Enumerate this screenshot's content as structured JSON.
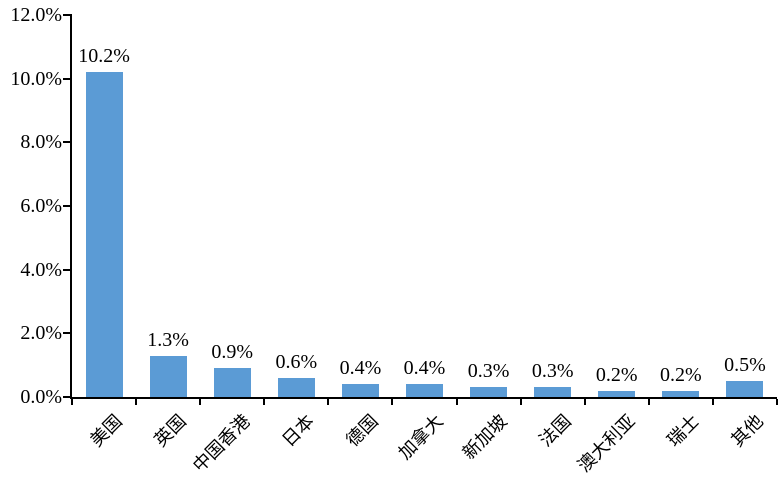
{
  "chart_data": {
    "type": "bar",
    "title": "",
    "xlabel": "",
    "ylabel": "",
    "categories": [
      "美国",
      "英国",
      "中国香港",
      "日本",
      "德国",
      "加拿大",
      "新加坡",
      "法国",
      "澳大利亚",
      "瑞士",
      "其他"
    ],
    "values": [
      10.2,
      1.3,
      0.9,
      0.6,
      0.4,
      0.4,
      0.3,
      0.3,
      0.2,
      0.2,
      0.5
    ],
    "data_labels": [
      "10.2%",
      "1.3%",
      "0.9%",
      "0.6%",
      "0.4%",
      "0.4%",
      "0.3%",
      "0.3%",
      "0.2%",
      "0.2%",
      "0.5%"
    ],
    "ylim": [
      0,
      12
    ],
    "y_tick_step": 2,
    "y_ticks": [
      "0.0%",
      "2.0%",
      "4.0%",
      "6.0%",
      "8.0%",
      "10.0%",
      "12.0%"
    ],
    "grid": false,
    "legend": "none",
    "bar_color": "#5B9BD5",
    "axis_color": "#000000",
    "text_color": "#000000",
    "background_color": "#FFFFFF",
    "x_label_rotation_deg": -45
  }
}
